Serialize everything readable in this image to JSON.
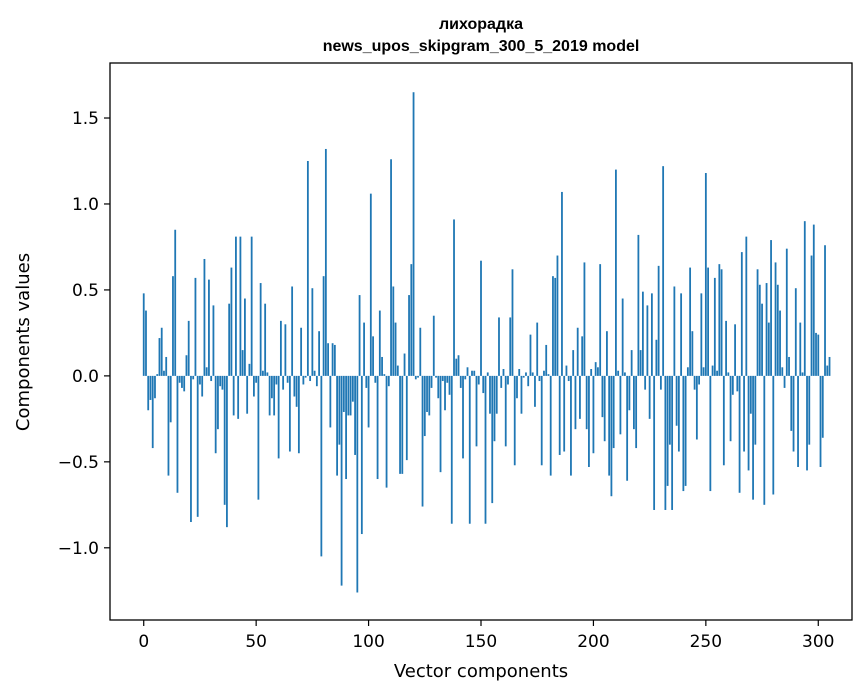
{
  "chart_data": {
    "type": "bar",
    "title_line1": "лихорадка",
    "title_line2": "news_upos_skipgram_300_5_2019 model",
    "xlabel": "Vector components",
    "ylabel": "Components values",
    "xlim": [
      -15,
      315
    ],
    "ylim": [
      -1.42,
      1.82
    ],
    "xticks": [
      0,
      50,
      100,
      150,
      200,
      250,
      300
    ],
    "xtick_labels": [
      "0",
      "50",
      "100",
      "150",
      "200",
      "250",
      "300"
    ],
    "yticks": [
      -1.0,
      -0.5,
      0.0,
      0.5,
      1.0,
      1.5
    ],
    "ytick_labels": [
      "−1.0",
      "−0.5",
      "0.0",
      "0.5",
      "1.0",
      "1.5"
    ],
    "bar_color": "#1f77b4",
    "grid": false,
    "values": [
      0.48,
      0.38,
      -0.2,
      -0.14,
      -0.42,
      -0.13,
      0.01,
      0.22,
      0.28,
      0.03,
      0.11,
      -0.58,
      -0.27,
      0.58,
      0.85,
      -0.68,
      -0.04,
      -0.07,
      -0.09,
      0.12,
      0.32,
      -0.85,
      -0.02,
      0.57,
      -0.82,
      -0.05,
      -0.12,
      0.68,
      0.05,
      0.56,
      -0.03,
      0.41,
      -0.45,
      -0.31,
      -0.06,
      -0.08,
      -0.75,
      -0.88,
      0.42,
      0.63,
      -0.23,
      0.81,
      -0.25,
      0.81,
      0.15,
      0.45,
      -0.22,
      0.07,
      0.81,
      -0.12,
      -0.04,
      -0.72,
      0.54,
      0.03,
      0.42,
      0.02,
      -0.23,
      -0.13,
      -0.23,
      -0.05,
      -0.48,
      0.32,
      -0.08,
      0.3,
      -0.04,
      -0.44,
      0.52,
      -0.12,
      -0.18,
      -0.45,
      0.28,
      -0.05,
      -0.01,
      1.25,
      -0.03,
      0.51,
      0.03,
      -0.06,
      0.26,
      -1.05,
      0.58,
      1.32,
      0.19,
      -0.3,
      0.19,
      0.18,
      -0.58,
      -0.4,
      -1.22,
      -0.21,
      -0.6,
      -0.23,
      -0.23,
      -0.15,
      -0.46,
      -1.26,
      0.47,
      -0.92,
      0.31,
      -0.07,
      -0.3,
      1.06,
      0.23,
      -0.04,
      -0.6,
      0.38,
      0.11,
      0.01,
      -0.65,
      -0.06,
      1.26,
      0.52,
      0.31,
      0.06,
      -0.57,
      -0.57,
      0.13,
      -0.49,
      0.47,
      0.65,
      1.65,
      -0.02,
      -0.01,
      0.28,
      -0.76,
      -0.35,
      -0.21,
      -0.23,
      -0.07,
      0.35,
      -0.01,
      -0.13,
      -0.56,
      -0.03,
      -0.2,
      -0.04,
      -0.11,
      -0.86,
      0.91,
      0.1,
      0.12,
      -0.07,
      -0.48,
      -0.02,
      0.05,
      -0.86,
      0.03,
      0.03,
      -0.41,
      -0.05,
      0.67,
      -0.1,
      -0.86,
      0.02,
      -0.22,
      -0.74,
      -0.38,
      -0.22,
      0.34,
      -0.07,
      0.04,
      -0.41,
      -0.05,
      0.34,
      0.62,
      -0.52,
      -0.13,
      0.04,
      -0.22,
      -0.01,
      0.02,
      -0.06,
      0.24,
      0.02,
      -0.18,
      0.31,
      -0.03,
      -0.52,
      0.03,
      0.18,
      0.01,
      -0.58,
      0.58,
      0.57,
      0.7,
      -0.46,
      1.07,
      -0.44,
      0.06,
      -0.03,
      -0.58,
      0.15,
      -0.31,
      0.28,
      -0.25,
      0.23,
      0.66,
      -0.31,
      -0.53,
      0.04,
      -0.45,
      0.08,
      0.05,
      0.65,
      -0.24,
      -0.38,
      0.26,
      -0.58,
      -0.7,
      -0.42,
      1.2,
      0.03,
      -0.34,
      0.45,
      0.02,
      -0.61,
      -0.2,
      0.15,
      -0.31,
      -0.42,
      0.82,
      0.15,
      0.49,
      -0.08,
      0.41,
      -0.25,
      0.48,
      -0.78,
      0.21,
      0.64,
      -0.08,
      1.22,
      -0.78,
      -0.64,
      -0.4,
      -0.78,
      0.52,
      -0.29,
      -0.44,
      0.48,
      -0.67,
      -0.64,
      0.05,
      0.63,
      0.26,
      -0.08,
      -0.37,
      -0.05,
      0.48,
      0.05,
      1.18,
      0.63,
      -0.67,
      0.06,
      0.57,
      0.03,
      0.65,
      0.62,
      -0.52,
      0.32,
      0.02,
      -0.38,
      -0.11,
      0.3,
      -0.09,
      -0.68,
      0.72,
      -0.44,
      0.81,
      -0.55,
      -0.22,
      -0.72,
      -0.4,
      0.62,
      0.53,
      0.42,
      -0.75,
      0.54,
      0.31,
      0.79,
      -0.69,
      0.66,
      0.53,
      0.38,
      0.05,
      -0.07,
      0.74,
      0.11,
      -0.32,
      -0.44,
      0.51,
      -0.53,
      0.31,
      0.02,
      0.9,
      -0.55,
      -0.4,
      0.7,
      0.88,
      0.25,
      0.24,
      -0.53,
      -0.36,
      0.76,
      0.06,
      0.11
    ]
  }
}
